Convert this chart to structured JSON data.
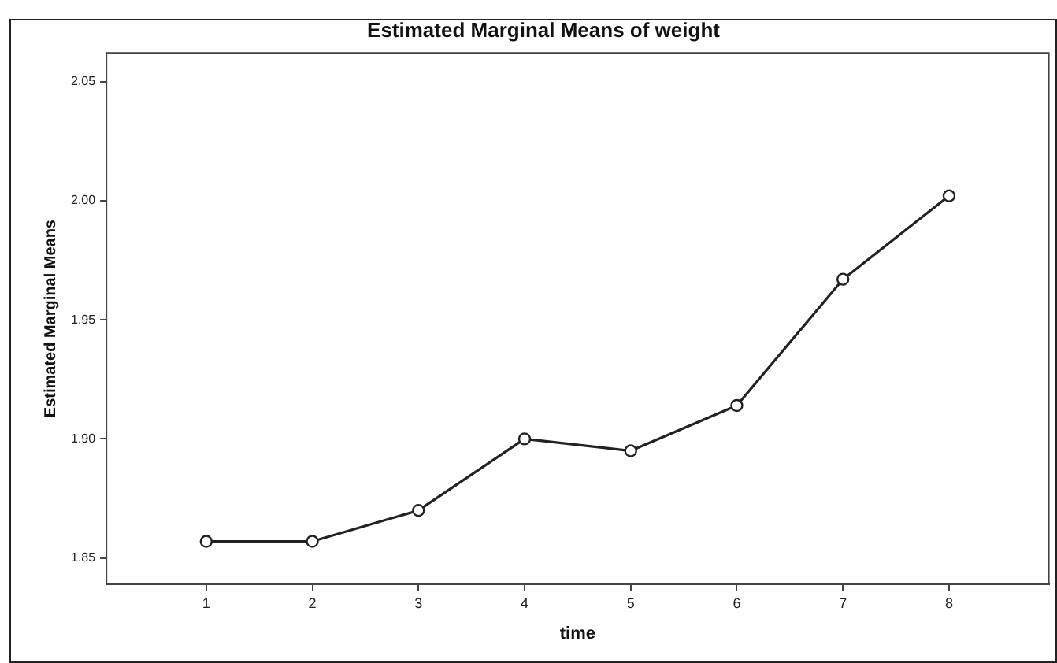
{
  "chart_data": {
    "type": "line",
    "title": "Estimated Marginal Means of weight",
    "xlabel": "time",
    "ylabel": "Estimated Marginal Means",
    "x": [
      1,
      2,
      3,
      4,
      5,
      6,
      7,
      8
    ],
    "series": [
      {
        "color": "#222222",
        "values": [
          1.857,
          1.857,
          1.87,
          1.9,
          1.895,
          1.914,
          1.967,
          2.002
        ]
      }
    ],
    "xlim": [
      0.06,
      8.94
    ],
    "xticks": [
      1,
      2,
      3,
      4,
      5,
      6,
      7,
      8
    ],
    "ylim": [
      1.839,
      2.062
    ],
    "yticks": [
      {
        "value": 1.85,
        "label": "1.85"
      },
      {
        "value": 1.9,
        "label": "1.90"
      },
      {
        "value": 1.95,
        "label": "1.95"
      },
      {
        "value": 2.0,
        "label": "2.00"
      },
      {
        "value": 2.05,
        "label": "2.05"
      }
    ],
    "grid": false,
    "legend": false,
    "marker": "circle",
    "line_style": "solid"
  }
}
